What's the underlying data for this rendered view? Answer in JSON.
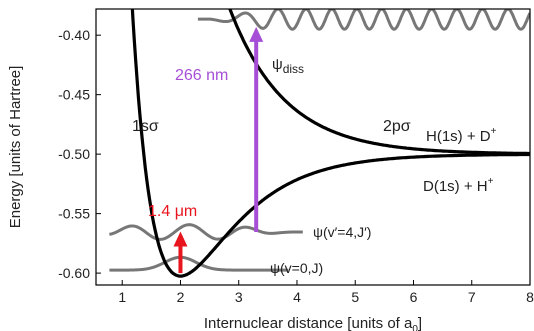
{
  "axes": {
    "xlabel": "Internuclear distance [units of a",
    "xlabel_sub": "0",
    "xlabel_close": "]",
    "ylabel": "Energy [units of Hartree]",
    "xlim": [
      0.55,
      8.0
    ],
    "ylim": [
      -0.61,
      -0.378
    ],
    "xticks": [
      "1",
      "2",
      "3",
      "4",
      "5",
      "6",
      "7",
      "8"
    ],
    "yticks": [
      "-0.40",
      "-0.45",
      "-0.50",
      "-0.55",
      "-0.60"
    ]
  },
  "curves": {
    "ground_label": "1sσ",
    "excited_label": "2pσ",
    "ground_asymptote": "D(1s) + H",
    "ground_asymptote_sup": "+",
    "excited_asymptote": "H(1s) + D",
    "excited_asymptote_sup": "+"
  },
  "transitions": {
    "ir_label": "1.4 μm",
    "uv_label": "266 nm",
    "ir_color": "#e8141e",
    "uv_color": "#a64fd6"
  },
  "wavefunctions": {
    "v0_label": "ψ(v=0,J)",
    "v4_label": "ψ(v′=4,J′)",
    "diss_label": "ψ",
    "diss_sub": "diss",
    "color": "#777777"
  }
}
